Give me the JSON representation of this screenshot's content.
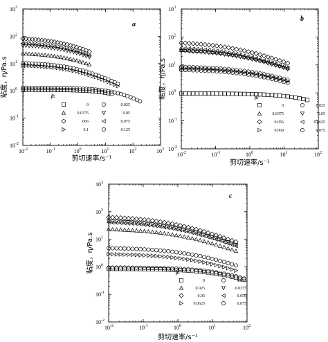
{
  "chart_data": [
    {
      "type": "scatter",
      "panel_label": "a",
      "xlabel": "剪切速率/s⁻¹",
      "ylabel": "粘度，η/Pa.s",
      "xscale": "log",
      "yscale": "log",
      "xlim": [
        0.01,
        1000
      ],
      "ylim": [
        0.01,
        1000
      ],
      "legend_title": "β:",
      "legend_placement": "bottom-left",
      "series": [
        {
          "name": "0",
          "marker": "square",
          "eta0": 1.1,
          "gc": 60,
          "n": 0.7,
          "x_range": [
            0.01,
            20
          ]
        },
        {
          "name": "0.025",
          "marker": "circle",
          "eta0": 1.3,
          "gc": 60,
          "n": 0.7,
          "x_range": [
            0.01,
            200
          ]
        },
        {
          "name": "0.0375",
          "marker": "triangle-up",
          "eta0": 25,
          "gc": 1.0,
          "n": 0.55,
          "x_range": [
            0.01,
            3
          ]
        },
        {
          "name": "0.05",
          "marker": "triangle-down",
          "eta0": 50,
          "gc": 0.8,
          "n": 0.55,
          "x_range": [
            0.01,
            3
          ]
        },
        {
          "name": "006",
          "marker": "diamond",
          "eta0": 90,
          "gc": 0.6,
          "n": 0.55,
          "x_range": [
            0.01,
            3
          ]
        },
        {
          "name": "0.075",
          "marker": "triangle-left",
          "eta0": 60,
          "gc": 0.7,
          "n": 0.55,
          "x_range": [
            0.01,
            3
          ]
        },
        {
          "name": "0.1",
          "marker": "triangle-right",
          "eta0": 9,
          "gc": 1.5,
          "n": 0.55,
          "x_range": [
            0.01,
            30
          ]
        },
        {
          "name": "0.125",
          "marker": "circle",
          "eta0": 11,
          "gc": 1.5,
          "n": 0.55,
          "x_range": [
            0.01,
            30
          ]
        }
      ]
    },
    {
      "type": "scatter",
      "panel_label": "b",
      "xlabel": "剪切速率/s⁻¹",
      "ylabel": "粘度，η/Pa.s",
      "xscale": "log",
      "yscale": "log",
      "xlim": [
        0.01,
        100
      ],
      "ylim": [
        0.01,
        1000
      ],
      "legend_title": "β:",
      "legend_placement": "bottom-center",
      "series": [
        {
          "name": "0",
          "marker": "square",
          "eta0": 0.95,
          "gc": 80,
          "n": 0.7,
          "x_range": [
            0.01,
            60
          ]
        },
        {
          "name": "0.025",
          "marker": "circle",
          "eta0": 7,
          "gc": 3,
          "n": 0.5,
          "x_range": [
            0.01,
            15
          ]
        },
        {
          "name": "0.0375",
          "marker": "triangle-up",
          "eta0": 38,
          "gc": 0.8,
          "n": 0.5,
          "x_range": [
            0.01,
            15
          ]
        },
        {
          "name": "0.05",
          "marker": "triangle-down",
          "eta0": 35,
          "gc": 0.8,
          "n": 0.5,
          "x_range": [
            0.01,
            15
          ]
        },
        {
          "name": "0.056",
          "marker": "diamond",
          "eta0": 70,
          "gc": 0.5,
          "n": 0.5,
          "x_range": [
            0.01,
            15
          ]
        },
        {
          "name": "0.0625",
          "marker": "triangle-left",
          "eta0": 45,
          "gc": 0.6,
          "n": 0.5,
          "x_range": [
            0.01,
            15
          ]
        },
        {
          "name": "0.069",
          "marker": "triangle-right",
          "eta0": 8,
          "gc": 3,
          "n": 0.5,
          "x_range": [
            0.01,
            15
          ]
        },
        {
          "name": "0.075",
          "marker": "circle",
          "eta0": 9,
          "gc": 3,
          "n": 0.5,
          "x_range": [
            0.01,
            15
          ]
        }
      ]
    },
    {
      "type": "scatter",
      "panel_label": "c",
      "xlabel": "剪切速率/s⁻¹",
      "ylabel": "粘度，η/Pa.s",
      "xscale": "log",
      "yscale": "log",
      "xlim": [
        0.01,
        100
      ],
      "ylim": [
        0.01,
        1000
      ],
      "legend_title": "β:",
      "legend_placement": "bottom-center",
      "series": [
        {
          "name": "0",
          "marker": "square",
          "eta0": 0.85,
          "gc": 40,
          "n": 0.6,
          "x_range": [
            0.01,
            100
          ]
        },
        {
          "name": "0.013",
          "marker": "circle",
          "eta0": 0.95,
          "gc": 40,
          "n": 0.6,
          "x_range": [
            0.01,
            100
          ]
        },
        {
          "name": "0.025",
          "marker": "triangle-up",
          "eta0": 25,
          "gc": 1.5,
          "n": 0.5,
          "x_range": [
            0.01,
            50
          ]
        },
        {
          "name": "0.0375",
          "marker": "triangle-down",
          "eta0": 50,
          "gc": 1.0,
          "n": 0.5,
          "x_range": [
            0.01,
            50
          ]
        },
        {
          "name": "0.05",
          "marker": "diamond",
          "eta0": 70,
          "gc": 0.8,
          "n": 0.5,
          "x_range": [
            0.01,
            50
          ]
        },
        {
          "name": "0.056",
          "marker": "triangle-left",
          "eta0": 45,
          "gc": 1.0,
          "n": 0.5,
          "x_range": [
            0.01,
            50
          ]
        },
        {
          "name": "0.0625",
          "marker": "triangle-right",
          "eta0": 3,
          "gc": 5,
          "n": 0.5,
          "x_range": [
            0.01,
            50
          ]
        },
        {
          "name": "0.075",
          "marker": "circle",
          "eta0": 5,
          "gc": 4,
          "n": 0.5,
          "x_range": [
            0.01,
            50
          ]
        }
      ]
    }
  ]
}
